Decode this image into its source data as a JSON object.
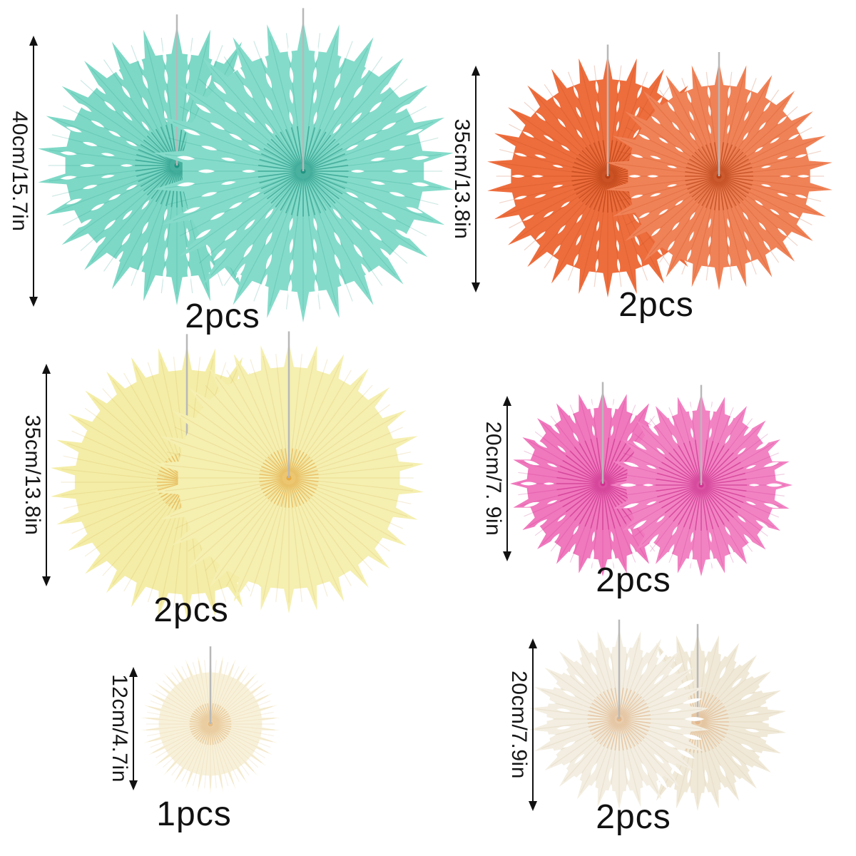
{
  "page": {
    "background": "#ffffff",
    "type": "paper-fan-size-infographic"
  },
  "string_color": "#b8b8b8",
  "arrow_color": "#111111",
  "groups": [
    {
      "name": "mint-green-fans",
      "size_label": "40cm/15.7in",
      "count_label": "2pcs",
      "colors": {
        "body": "#7ed8c6",
        "body2": "#85dbca",
        "deep": "#1f9e8a",
        "center": "#1b8f7d"
      }
    },
    {
      "name": "orange-fans",
      "size_label": "35cm/13.8in",
      "count_label": "2pcs",
      "colors": {
        "body": "#ed6d3d",
        "body2": "#f08257",
        "deep": "#bc4314",
        "center": "#b03c10"
      }
    },
    {
      "name": "yellow-fans",
      "size_label": "35cm/13.8in",
      "count_label": "2pcs",
      "colors": {
        "body": "#f4eda7",
        "body2": "#f5efb0",
        "deep": "#d3b052",
        "center": "#e5a63c"
      }
    },
    {
      "name": "pink-fans",
      "size_label": "20cm/7. 9in",
      "count_label": "2pcs",
      "colors": {
        "body": "#f078bd",
        "body2": "#f283c3",
        "deep": "#c02b85",
        "center": "#cb2f8c"
      }
    },
    {
      "name": "ivory-small-fan",
      "size_label": "12cm/4.7in",
      "count_label": "1pcs",
      "colors": {
        "body": "#f8f1da",
        "body2": "#f8f1da",
        "deep": "#dfc48f",
        "center": "#e4b97f"
      }
    },
    {
      "name": "cream-fans",
      "size_label": "20cm/7.9in",
      "count_label": "2pcs",
      "colors": {
        "body": "#f3eee1",
        "body2": "#f0e9d8",
        "deep": "#cfb democracy",
        "center": "#e2b384"
      }
    }
  ]
}
